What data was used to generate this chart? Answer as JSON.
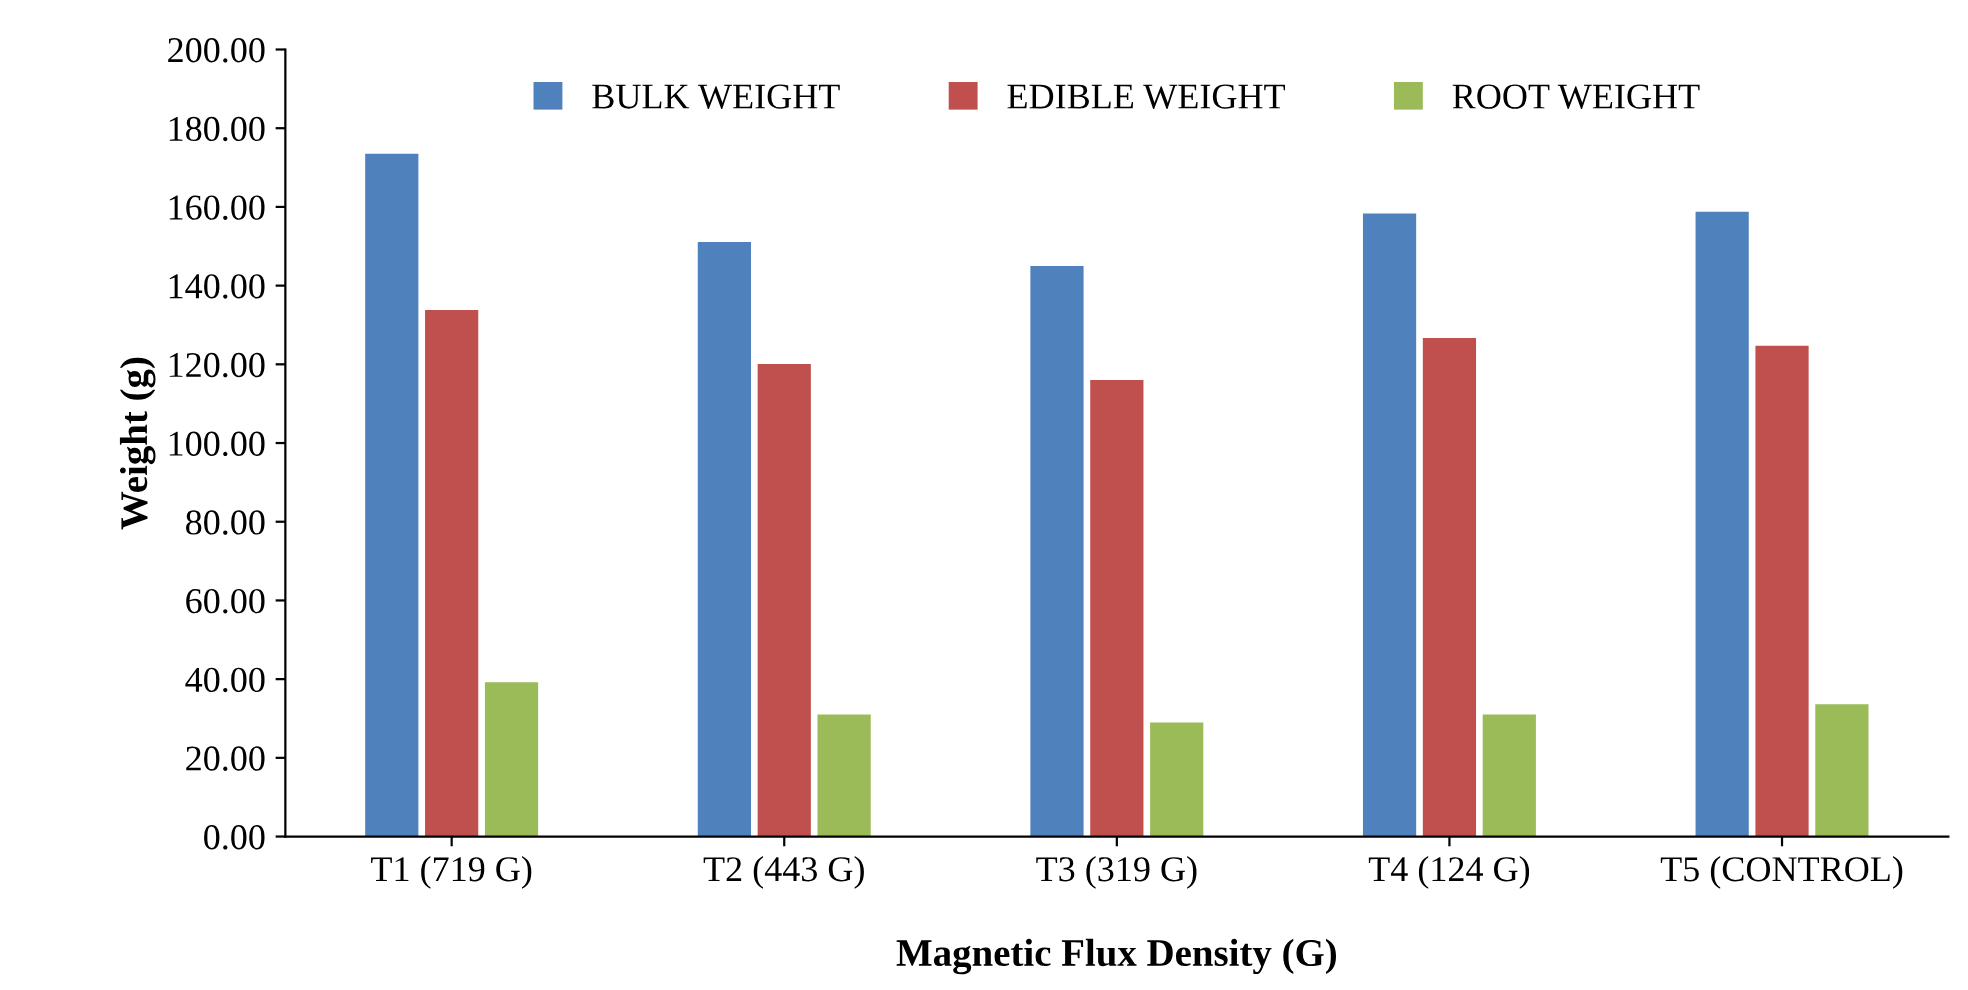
{
  "chart_data": {
    "type": "bar",
    "xlabel": "Magnetic Flux Density (G)",
    "ylabel": "Weight (g)",
    "categories": [
      "T1 (719 G)",
      "T2 (443 G)",
      "T3 (319 G)",
      "T4 (124 G)",
      "T5 (CONTROL)"
    ],
    "series": [
      {
        "name": "BULK WEIGHT",
        "color": "#4f81bd",
        "values": [
          173.5,
          151.1,
          145.0,
          158.3,
          158.8
        ]
      },
      {
        "name": "EDIBLE WEIGHT",
        "color": "#c0504d",
        "values": [
          133.8,
          120.1,
          116.0,
          126.7,
          124.7
        ]
      },
      {
        "name": "ROOT WEIGHT",
        "color": "#9bbb59",
        "values": [
          39.2,
          31.0,
          29.0,
          31.0,
          33.6
        ]
      }
    ],
    "ylim": [
      0,
      200
    ],
    "yticks": [
      {
        "value": 0,
        "label": "0.00"
      },
      {
        "value": 20,
        "label": "20.00"
      },
      {
        "value": 40,
        "label": "40.00"
      },
      {
        "value": 60,
        "label": "60.00"
      },
      {
        "value": 80,
        "label": "80.00"
      },
      {
        "value": 100,
        "label": "100.00"
      },
      {
        "value": 120,
        "label": "120.00"
      },
      {
        "value": 140,
        "label": "140.00"
      },
      {
        "value": 160,
        "label": "160.00"
      },
      {
        "value": 180,
        "label": "180.00"
      },
      {
        "value": 200,
        "label": "200.00"
      }
    ],
    "grid": false,
    "legend": "top"
  }
}
